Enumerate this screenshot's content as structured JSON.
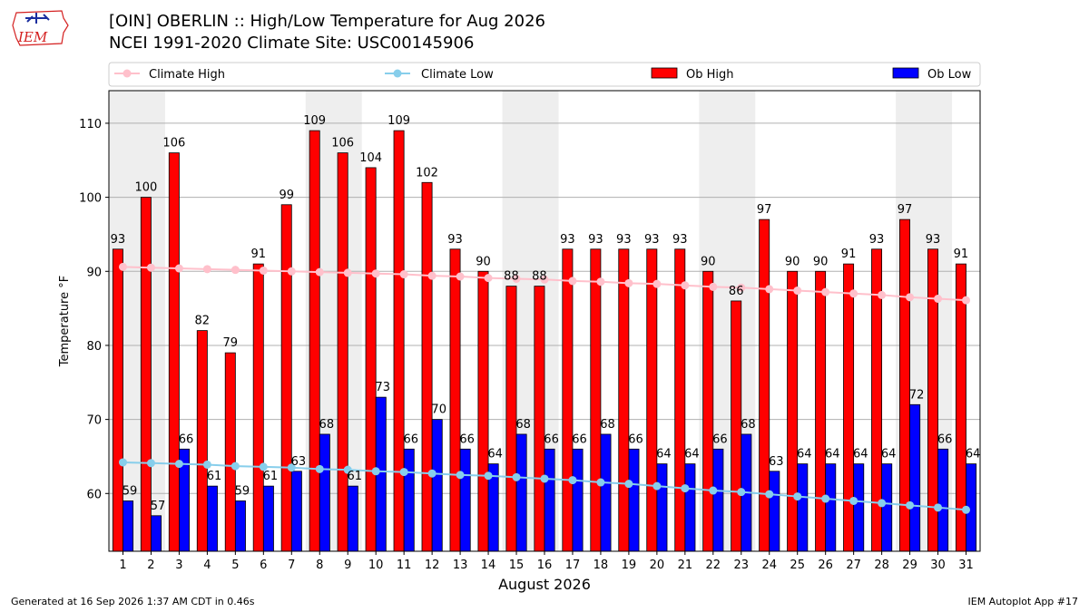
{
  "header": {
    "title_line1": "[OIN] OBERLIN :: High/Low Temperature for Aug 2026",
    "title_line2": "NCEI 1991-2020 Climate Site: USC00145906"
  },
  "logo": {
    "text": "IEM",
    "color": "#d42020"
  },
  "footer": {
    "generated": "Generated at 16 Sep 2026 1:37 AM CDT in 0.46s",
    "app": "IEM Autoplot App #17"
  },
  "chart_data": {
    "type": "bar",
    "xlabel": "August 2026",
    "ylabel": "Temperature °F",
    "ylim": [
      52.2,
      114.4
    ],
    "yticks": [
      60,
      70,
      80,
      90,
      100,
      110
    ],
    "grid": true,
    "legend": "top",
    "categories": [
      "1",
      "2",
      "3",
      "4",
      "5",
      "6",
      "7",
      "8",
      "9",
      "10",
      "11",
      "12",
      "13",
      "14",
      "15",
      "16",
      "17",
      "18",
      "19",
      "20",
      "21",
      "22",
      "23",
      "24",
      "25",
      "26",
      "27",
      "28",
      "29",
      "30",
      "31"
    ],
    "weekend_shading": [
      [
        1,
        2
      ],
      [
        8,
        9
      ],
      [
        15,
        16
      ],
      [
        22,
        23
      ],
      [
        29,
        30
      ]
    ],
    "series": [
      {
        "name": "Climate High",
        "kind": "line",
        "color": "#ffc0cb",
        "values": [
          90.6,
          90.5,
          90.4,
          90.3,
          90.2,
          90.1,
          90.0,
          89.9,
          89.8,
          89.7,
          89.6,
          89.4,
          89.3,
          89.1,
          89.0,
          88.9,
          88.7,
          88.6,
          88.4,
          88.3,
          88.1,
          87.9,
          87.8,
          87.6,
          87.4,
          87.2,
          87.0,
          86.8,
          86.5,
          86.3,
          86.1
        ]
      },
      {
        "name": "Climate Low",
        "kind": "line",
        "color": "#87ceeb",
        "values": [
          64.2,
          64.1,
          64.0,
          63.9,
          63.7,
          63.6,
          63.5,
          63.3,
          63.2,
          63.0,
          62.9,
          62.7,
          62.5,
          62.4,
          62.2,
          62.0,
          61.8,
          61.5,
          61.3,
          61.0,
          60.7,
          60.4,
          60.2,
          59.9,
          59.6,
          59.3,
          59.0,
          58.7,
          58.4,
          58.1,
          57.8
        ]
      },
      {
        "name": "Ob High",
        "kind": "bar",
        "color": "#ff0000",
        "values": [
          93,
          100,
          106,
          82,
          79,
          91,
          99,
          109,
          106,
          104,
          109,
          102,
          93,
          90,
          88,
          88,
          93,
          93,
          93,
          93,
          93,
          90,
          86,
          97,
          90,
          90,
          91,
          93,
          97,
          93,
          91
        ]
      },
      {
        "name": "Ob Low",
        "kind": "bar",
        "color": "#0000ff",
        "values": [
          59,
          57,
          66,
          61,
          59,
          61,
          63,
          68,
          61,
          73,
          66,
          70,
          66,
          64,
          68,
          66,
          66,
          68,
          66,
          64,
          64,
          66,
          68,
          63,
          64,
          64,
          64,
          64,
          72,
          66,
          64
        ]
      }
    ]
  }
}
